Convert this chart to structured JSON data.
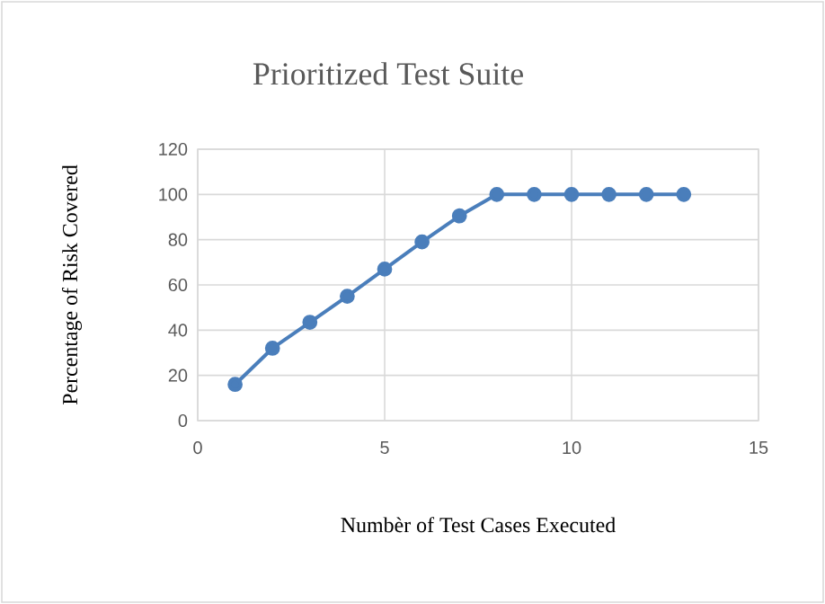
{
  "chart_data": {
    "type": "line",
    "title": "Prioritized Test Suite",
    "xlabel": "Numbèr of Test Cases Executed",
    "ylabel": "Percentage of Risk Covered",
    "x": [
      1,
      2,
      3,
      4,
      5,
      6,
      7,
      8,
      9,
      10,
      11,
      12,
      13
    ],
    "series": [
      {
        "color": "#4a7ebb",
        "values": [
          16,
          32,
          43.5,
          55,
          67,
          79,
          90.5,
          100,
          100,
          100,
          100,
          100,
          100
        ]
      }
    ],
    "xlim": [
      0,
      15
    ],
    "xticks": [
      0,
      5,
      10,
      15
    ],
    "ylim": [
      0,
      120
    ],
    "yticks": [
      0,
      20,
      40,
      60,
      80,
      100,
      120
    ],
    "grid": true,
    "marker": "circle",
    "line_style": "solid"
  }
}
